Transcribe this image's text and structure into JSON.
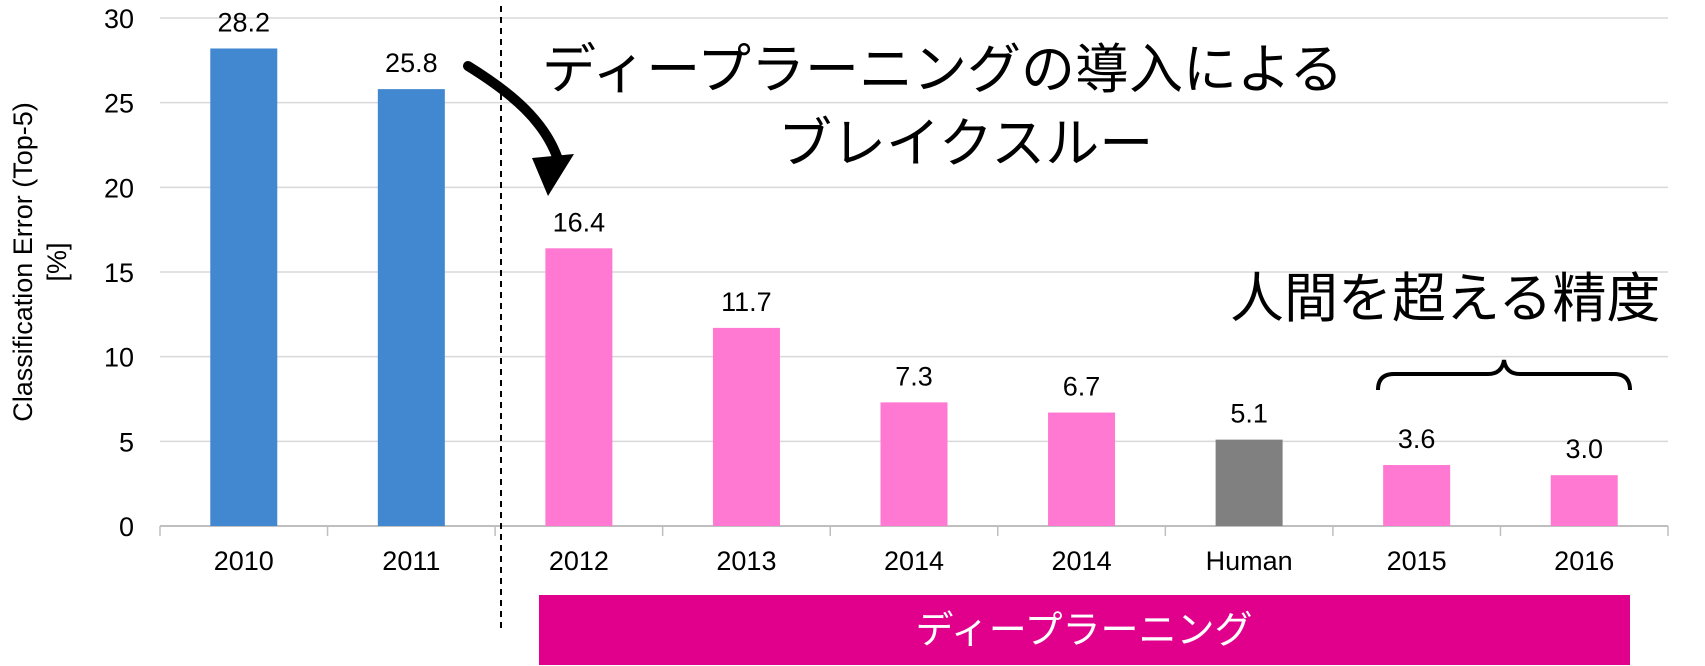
{
  "chart_data": {
    "type": "bar",
    "categories": [
      "2010",
      "2011",
      "2012",
      "2013",
      "2014",
      "2014",
      "Human",
      "2015",
      "2016"
    ],
    "values": [
      28.2,
      25.8,
      16.4,
      11.7,
      7.3,
      6.7,
      5.1,
      3.6,
      3.0
    ],
    "value_labels": [
      "28.2",
      "25.8",
      "16.4",
      "11.7",
      "7.3",
      "6.7",
      "5.1",
      "3.6",
      "3.0"
    ],
    "yticks": [
      "0",
      "5",
      "10",
      "15",
      "20",
      "25",
      "30"
    ],
    "ylim": [
      0,
      30
    ],
    "ylabel_line1": "Classification Error (Top-5)",
    "ylabel_line2": "[%]",
    "grid": true,
    "bar_colors": [
      "#4288d0",
      "#4288d0",
      "#ff78d2",
      "#ff78d2",
      "#ff78d2",
      "#ff78d2",
      "#808080",
      "#ff78d2",
      "#ff78d2"
    ],
    "annotations": {
      "breakthrough_line1": "ディープラーニングの導入による",
      "breakthrough_line2": "ブレイクスルー",
      "surpass_human": "人間を超える精度",
      "deep_learning_band": "ディープラーニング"
    },
    "colors": {
      "band": "#e0008c",
      "grid": "#d9d9d9",
      "axis": "#bfbfbf"
    }
  }
}
